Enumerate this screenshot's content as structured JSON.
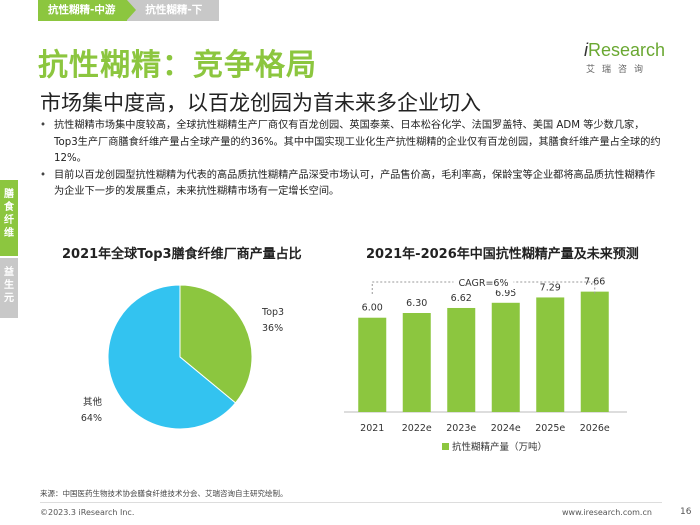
{
  "breadcrumb": {
    "items": [
      "抗性糊精-中游",
      "抗性糊精-下游"
    ]
  },
  "title": "抗性糊精：竞争格局",
  "subtitle": "市场集中度高，以百龙创园为首未来多企业切入",
  "logo": {
    "word": "Research",
    "word_prefix": "i",
    "cn": "艾瑞咨询"
  },
  "bullets": [
    "抗性糊精市场集中度较高，全球抗性糊精生产厂商仅有百龙创园、英国泰莱、日本松谷化学、法国罗盖特、美国 ADM 等少数几家，Top3生产厂商膳食纤维产量占全球产量的约36%。其中中国实现工业化生产抗性糊精的企业仅有百龙创园，其膳食纤维产量占全球的约12%。",
    "目前以百龙创园型抗性糊精为代表的高品质抗性糊精产品深受市场认可，产品售价高，毛利率高，保龄宝等企业都将高品质抗性糊精作为企业下一步的发展重点，未来抗性糊精市场有一定增长空间。"
  ],
  "side_tabs": {
    "primary": "膳食纤维",
    "secondary": "益生元"
  },
  "colors": {
    "accent": "#8cc63f",
    "pie_top3": "#8cc63f",
    "pie_other": "#33c3f0",
    "bar": "#8cc63f"
  },
  "chart_data": [
    {
      "type": "pie",
      "title": "2021年全球Top3膳食纤维厂商产量占比",
      "slices": [
        {
          "label": "Top3",
          "value": 36,
          "display": "36%"
        },
        {
          "label": "其他",
          "value": 64,
          "display": "64%"
        }
      ]
    },
    {
      "type": "bar",
      "title": "2021年-2026年中国抗性糊精产量及未来预测",
      "categories": [
        "2021",
        "2022e",
        "2023e",
        "2024e",
        "2025e",
        "2026e"
      ],
      "values": [
        6.0,
        6.3,
        6.62,
        6.95,
        7.29,
        7.66
      ],
      "value_labels": [
        "6.00",
        "6.30",
        "6.62",
        "6.95",
        "7.29",
        "7.66"
      ],
      "annotation": "CAGR=6%",
      "legend": "抗性糊精产量（万吨）",
      "ylim": [
        0,
        8.4
      ]
    }
  ],
  "footer": {
    "source": "来源：中国医药生物技术协会膳食纤维技术分会、艾瑞咨询自主研究绘制。",
    "copyright": "©2023.3 iResearch Inc.",
    "website": "www.iresearch.com.cn",
    "page": "16"
  }
}
